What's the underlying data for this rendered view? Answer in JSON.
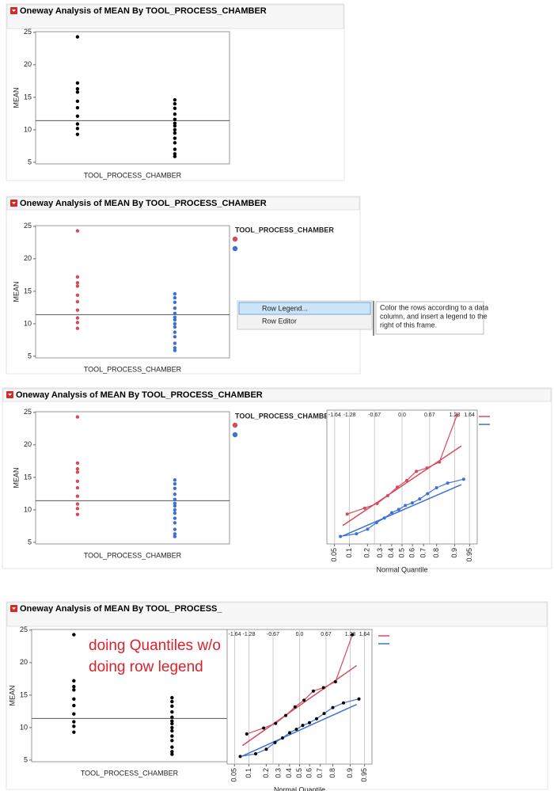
{
  "panels": [
    {
      "title": "Oneway Analysis of MEAN By TOOL_PROCESS_CHAMBER",
      "colored": false
    },
    {
      "title": "Oneway Analysis of MEAN By TOOL_PROCESS_CHAMBER",
      "colored": true,
      "legend_title": "TOOL_PROCESS_CHAMBER",
      "context_menu": [
        "Row Legend...",
        "Row Editor"
      ],
      "tooltip": [
        "Color the rows according to a data",
        "column, and insert a legend to the",
        "right of this frame."
      ]
    },
    {
      "title": "Oneway Analysis of MEAN By TOOL_PROCESS_CHAMBER",
      "colored": true,
      "legend_title": "TOOL_PROCESS_CHAMBER",
      "quantile_plot": true
    },
    {
      "title": "Oneway Analysis of MEAN By TOOL_PROCESS_",
      "colored": false,
      "quantile_plot": true,
      "annotation": [
        "doing Quantiles w/o",
        "doing row legend"
      ],
      "annotation_color": "#e0202a"
    }
  ],
  "oneway": {
    "y_label": "MEAN",
    "x_label": "TOOL_PROCESS_CHAMBER",
    "ylim": [
      4.75,
      25.1
    ],
    "yticks": [
      5,
      10,
      15,
      20,
      25
    ],
    "mean_line": 11.4,
    "plain_color": "#000000",
    "groups": [
      {
        "color": "#d64a5e",
        "values": [
          24.3,
          17.2,
          16.3,
          15.8,
          14.4,
          13.4,
          12.1,
          10.9,
          10.2,
          9.3
        ]
      },
      {
        "color": "#3d70d6",
        "values": [
          14.6,
          14.0,
          13.3,
          12.4,
          11.6,
          11.0,
          10.6,
          10.0,
          9.5,
          8.7,
          8.0,
          7.0,
          6.3,
          5.9
        ]
      }
    ]
  },
  "quantile": {
    "x_label": "Normal Quantile",
    "xlim": [
      -1.83,
      1.83
    ],
    "top_ticks": [
      -1.64,
      -1.28,
      -0.67,
      {
        "value": 0,
        "label": "0.0"
      },
      0.67,
      1.28,
      1.64
    ],
    "bottom_ticks": [
      0.05,
      0.1,
      0.2,
      0.3,
      0.4,
      0.5,
      0.6,
      0.7,
      0.8,
      0.9,
      0.95
    ],
    "series": [
      {
        "color": "#d64a5e",
        "fit": [
          13.6,
          4.19
        ],
        "x": [
          -1.335,
          -0.908,
          -0.605,
          -0.349,
          -0.114,
          0.114,
          0.349,
          0.605,
          0.908,
          1.335
        ],
        "values": [
          9.3,
          10.2,
          10.9,
          12.1,
          13.4,
          14.4,
          15.8,
          16.3,
          17.2,
          24.3
        ]
      },
      {
        "color": "#3d70d6",
        "fit": [
          9.87,
          2.7
        ],
        "x": [
          -1.5,
          -1.11,
          -0.84,
          -0.62,
          -0.43,
          -0.25,
          -0.08,
          0.08,
          0.25,
          0.43,
          0.62,
          0.84,
          1.11,
          1.5
        ],
        "values": [
          5.9,
          6.3,
          7.0,
          8.0,
          8.7,
          9.5,
          10.0,
          10.6,
          11.0,
          11.6,
          12.4,
          13.3,
          14.0,
          14.6
        ]
      }
    ]
  }
}
